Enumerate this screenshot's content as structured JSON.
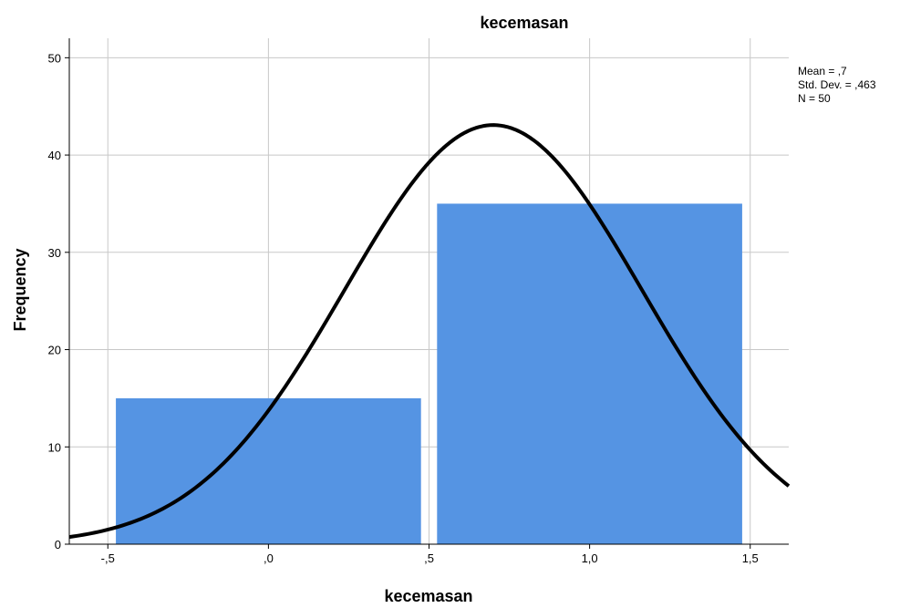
{
  "chart_data": {
    "type": "bar",
    "title": "kecemasan",
    "xlabel": "kecemasan",
    "ylabel": "Frequency",
    "xlim": [
      -0.62,
      1.62
    ],
    "ylim": [
      0,
      52
    ],
    "x_ticks": [
      -0.5,
      0.0,
      0.5,
      1.0,
      1.5
    ],
    "x_tick_labels": [
      "-,5",
      ",0",
      ",5",
      "1,0",
      "1,5"
    ],
    "y_ticks": [
      0,
      10,
      20,
      30,
      40,
      50
    ],
    "y_tick_labels": [
      "0",
      "10",
      "20",
      "30",
      "40",
      "50"
    ],
    "bins": [
      {
        "start": -0.475,
        "end": 0.475,
        "value": 15
      },
      {
        "start": 0.525,
        "end": 1.475,
        "value": 35
      }
    ],
    "normal_curve": {
      "mean": 0.7,
      "std": 0.463,
      "n": 50,
      "bin_width": 1.0
    },
    "stats_lines": [
      "Mean = ,7",
      "Std. Dev. = ,463",
      "N = 50"
    ],
    "grid": true,
    "bar_color": "#5594e3",
    "curve_color": "#000000",
    "grid_color": "#c8c8c8"
  }
}
